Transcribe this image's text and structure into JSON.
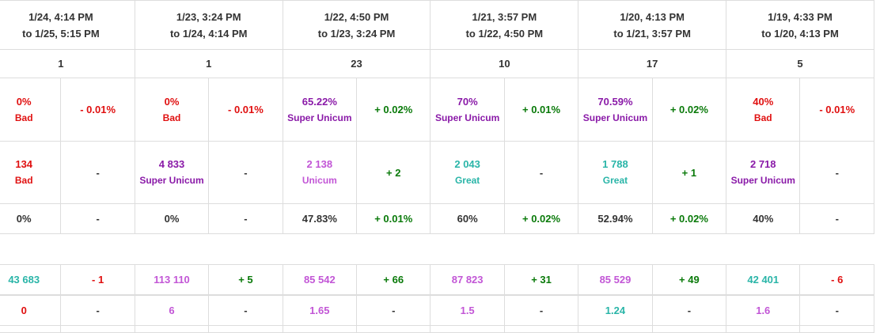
{
  "columns": [
    {
      "period_from": "1/24, 4:14 PM",
      "period_to": "to 1/25, 5:15 PM",
      "battles": "1",
      "winrate": {
        "value": "0%",
        "label": "Bad",
        "cls": "bad",
        "delta": "- 0.01%",
        "dcls": "neg"
      },
      "wn8": {
        "value": "134",
        "label": "Bad",
        "cls": "bad",
        "delta": "-",
        "dcls": "neu"
      },
      "survival": {
        "value": "0%",
        "delta": "-",
        "dcls": "neu"
      },
      "total": {
        "value": "43 683",
        "cls": "gr",
        "delta": "- 1",
        "dcls": "neg"
      },
      "ratio": {
        "value": "0",
        "cls": "bad",
        "delta": "-",
        "dcls": "neu"
      }
    },
    {
      "period_from": "1/23, 3:24 PM",
      "period_to": "to 1/24, 4:14 PM",
      "battles": "1",
      "winrate": {
        "value": "0%",
        "label": "Bad",
        "cls": "bad",
        "delta": "- 0.01%",
        "dcls": "neg"
      },
      "wn8": {
        "value": "4 833",
        "label": "Super Unicum",
        "cls": "su",
        "delta": "-",
        "dcls": "neu"
      },
      "survival": {
        "value": "0%",
        "delta": "-",
        "dcls": "neu"
      },
      "total": {
        "value": "113 110",
        "cls": "un",
        "delta": "+ 5",
        "dcls": "pos"
      },
      "ratio": {
        "value": "6",
        "cls": "un",
        "delta": "-",
        "dcls": "neu"
      }
    },
    {
      "period_from": "1/22, 4:50 PM",
      "period_to": "to 1/23, 3:24 PM",
      "battles": "23",
      "winrate": {
        "value": "65.22%",
        "label": "Super Unicum",
        "cls": "su",
        "delta": "+ 0.02%",
        "dcls": "pos"
      },
      "wn8": {
        "value": "2 138",
        "label": "Unicum",
        "cls": "un",
        "delta": "+ 2",
        "dcls": "pos"
      },
      "survival": {
        "value": "47.83%",
        "delta": "+ 0.01%",
        "dcls": "pos"
      },
      "total": {
        "value": "85 542",
        "cls": "un",
        "delta": "+ 66",
        "dcls": "pos"
      },
      "ratio": {
        "value": "1.65",
        "cls": "un",
        "delta": "-",
        "dcls": "neu"
      }
    },
    {
      "period_from": "1/21, 3:57 PM",
      "period_to": "to 1/22, 4:50 PM",
      "battles": "10",
      "winrate": {
        "value": "70%",
        "label": "Super Unicum",
        "cls": "su",
        "delta": "+ 0.01%",
        "dcls": "pos"
      },
      "wn8": {
        "value": "2 043",
        "label": "Great",
        "cls": "gr",
        "delta": "-",
        "dcls": "neu"
      },
      "survival": {
        "value": "60%",
        "delta": "+ 0.02%",
        "dcls": "pos"
      },
      "total": {
        "value": "87 823",
        "cls": "un",
        "delta": "+ 31",
        "dcls": "pos"
      },
      "ratio": {
        "value": "1.5",
        "cls": "un",
        "delta": "-",
        "dcls": "neu"
      }
    },
    {
      "period_from": "1/20, 4:13 PM",
      "period_to": "to 1/21, 3:57 PM",
      "battles": "17",
      "winrate": {
        "value": "70.59%",
        "label": "Super Unicum",
        "cls": "su",
        "delta": "+ 0.02%",
        "dcls": "pos"
      },
      "wn8": {
        "value": "1 788",
        "label": "Great",
        "cls": "gr",
        "delta": "+ 1",
        "dcls": "pos"
      },
      "survival": {
        "value": "52.94%",
        "delta": "+ 0.02%",
        "dcls": "pos"
      },
      "total": {
        "value": "85 529",
        "cls": "un",
        "delta": "+ 49",
        "dcls": "pos"
      },
      "ratio": {
        "value": "1.24",
        "cls": "gr",
        "delta": "-",
        "dcls": "neu"
      }
    },
    {
      "period_from": "1/19, 4:33 PM",
      "period_to": "to 1/20, 4:13 PM",
      "battles": "5",
      "winrate": {
        "value": "40%",
        "label": "Bad",
        "cls": "bad",
        "delta": "- 0.01%",
        "dcls": "neg"
      },
      "wn8": {
        "value": "2 718",
        "label": "Super Unicum",
        "cls": "su",
        "delta": "-",
        "dcls": "neu"
      },
      "survival": {
        "value": "40%",
        "delta": "-",
        "dcls": "neu"
      },
      "total": {
        "value": "42 401",
        "cls": "gr",
        "delta": "- 6",
        "dcls": "neg"
      },
      "ratio": {
        "value": "1.6",
        "cls": "un",
        "delta": "-",
        "dcls": "neu"
      }
    }
  ],
  "colors": {
    "bad": "#e01010",
    "super_unicum": "#8a1aa8",
    "unicum": "#c256d6",
    "great": "#2ab5a8",
    "positive": "#0a7a0a"
  }
}
